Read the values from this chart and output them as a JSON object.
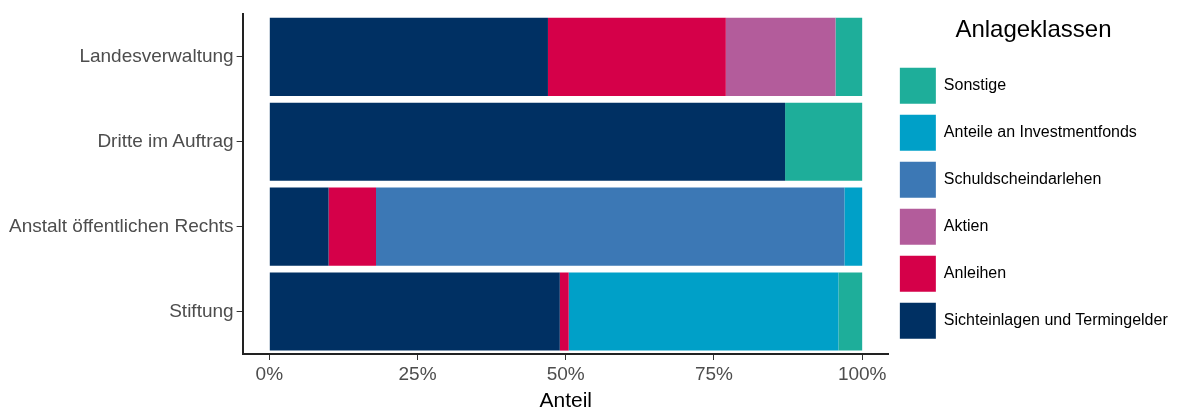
{
  "chart_data": {
    "type": "bar",
    "orientation": "horizontal",
    "stacked": true,
    "xlabel": "Anteil",
    "legend_title": "Anlageklassen",
    "legend": "right",
    "categories": [
      "Landesverwaltung",
      "Dritte im Auftrag",
      "Anstalt öffentlichen Rechts",
      "Stiftung"
    ],
    "series": [
      {
        "name": "Sichteinlagen und Termingelder",
        "color": "#003063",
        "values": [
          47,
          87,
          10,
          49
        ]
      },
      {
        "name": "Anleihen",
        "color": "#d50049",
        "values": [
          30,
          null,
          8,
          1.5
        ]
      },
      {
        "name": "Aktien",
        "color": "#b35c9b",
        "values": [
          18.5,
          null,
          null,
          null
        ]
      },
      {
        "name": "Schuldscheindarlehen",
        "color": "#3c78b5",
        "values": [
          null,
          null,
          79,
          null
        ]
      },
      {
        "name": "Anteile an Investmentfonds",
        "color": "#00a0c8",
        "values": [
          null,
          null,
          3,
          45.5
        ]
      },
      {
        "name": "Sonstige",
        "color": "#1eae9a",
        "values": [
          4.5,
          13,
          null,
          4
        ]
      }
    ],
    "xlim": [
      -4.5,
      104.5
    ],
    "xticks": [
      {
        "value": 0,
        "label": "0%"
      },
      {
        "value": 25,
        "label": "25%"
      },
      {
        "value": 50,
        "label": "50%"
      },
      {
        "value": 75,
        "label": "75%"
      },
      {
        "value": 100,
        "label": "100%"
      }
    ],
    "grid": false
  }
}
